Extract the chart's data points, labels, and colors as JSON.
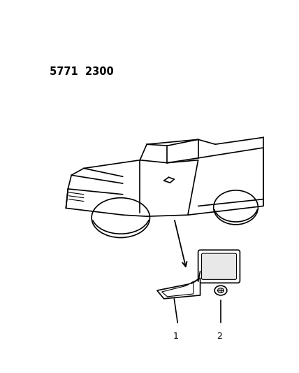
{
  "background_color": "#ffffff",
  "part_number": "5771  2300",
  "fig_width": 4.28,
  "fig_height": 5.33,
  "line_color": "#000000",
  "label1": "1",
  "label2": "2"
}
